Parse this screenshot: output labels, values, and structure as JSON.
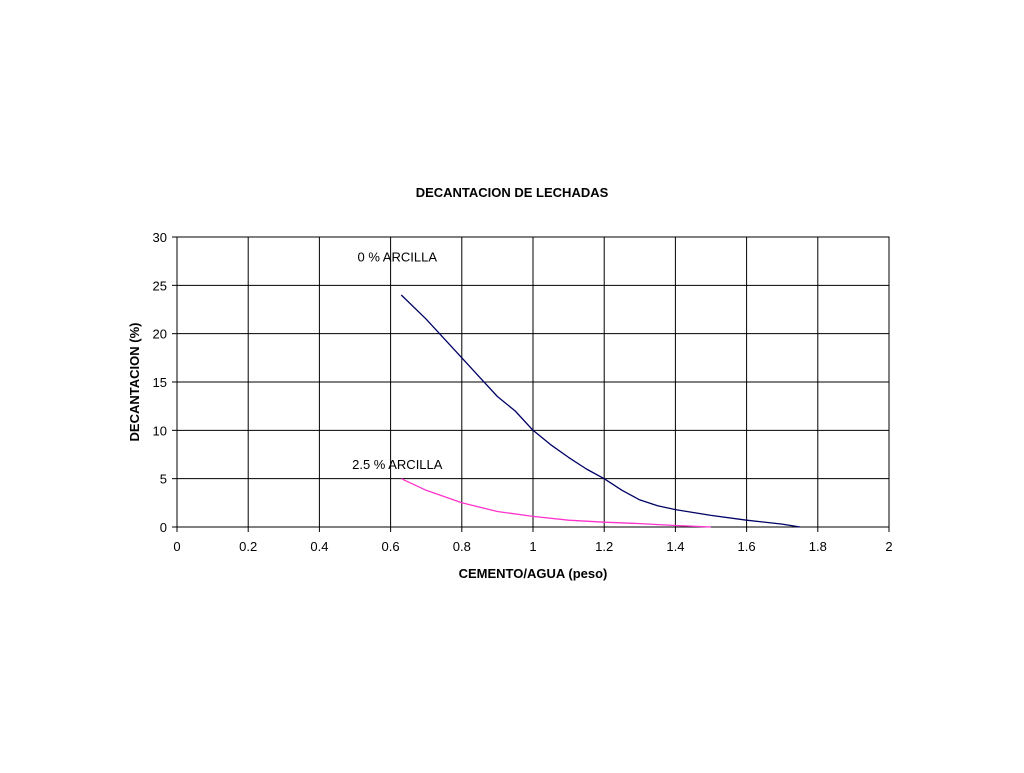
{
  "chart_data": {
    "type": "line",
    "title": "DECANTACION DE LECHADAS",
    "xlabel": "CEMENTO/AGUA (peso)",
    "ylabel": "DECANTACION (%)",
    "xlim": [
      0,
      2
    ],
    "ylim": [
      0,
      30
    ],
    "x_ticks": [
      "0",
      "0.2",
      "0.4",
      "0.6",
      "0.8",
      "1",
      "1.2",
      "1.4",
      "1.6",
      "1.8",
      "2"
    ],
    "y_ticks": [
      "0",
      "5",
      "10",
      "15",
      "20",
      "25",
      "30"
    ],
    "grid": true,
    "legend": "none",
    "series": [
      {
        "color": "#000066",
        "x": [
          0.63,
          0.7,
          0.8,
          0.85,
          0.9,
          0.95,
          1.0,
          1.05,
          1.1,
          1.15,
          1.2,
          1.25,
          1.3,
          1.35,
          1.4,
          1.45,
          1.5,
          1.6,
          1.7,
          1.75
        ],
        "y": [
          24.0,
          21.5,
          17.5,
          15.5,
          13.5,
          12.0,
          10.0,
          8.5,
          7.2,
          6.0,
          5.0,
          3.8,
          2.8,
          2.2,
          1.8,
          1.5,
          1.2,
          0.7,
          0.3,
          0.0
        ]
      },
      {
        "color": "#ff33cc",
        "x": [
          0.63,
          0.7,
          0.8,
          0.9,
          1.0,
          1.1,
          1.2,
          1.3,
          1.4,
          1.5
        ],
        "y": [
          5.0,
          3.8,
          2.5,
          1.6,
          1.1,
          0.7,
          0.5,
          0.35,
          0.15,
          0.0
        ]
      }
    ],
    "annotations": [
      {
        "text": "0 % ARCILLA",
        "x": 0.63,
        "y": 28
      },
      {
        "text": "2.5 % ARCILLA",
        "x": 0.63,
        "y": 6.5
      }
    ]
  }
}
